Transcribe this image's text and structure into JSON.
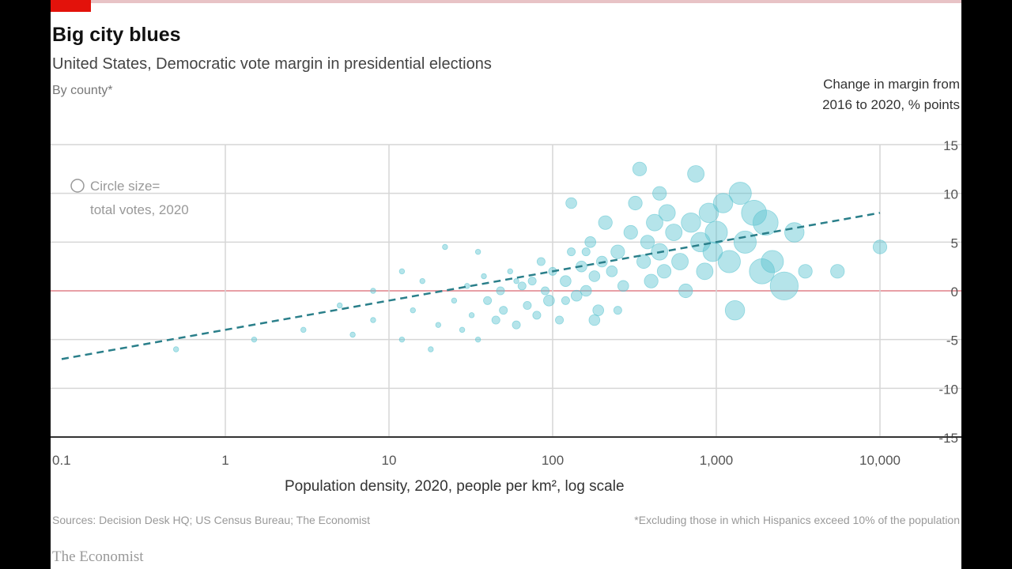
{
  "chart_data": {
    "type": "scatter",
    "title": "Big city blues",
    "subtitle": "United States, Democratic vote margin in presidential elections",
    "note": "By county*",
    "ylabel": "Change in margin from 2016 to 2020, % points",
    "ylabel_lines": [
      "Change in margin from",
      "2016 to 2020, % points"
    ],
    "xlabel": "Population density, 2020, people per km², log scale",
    "x_scale": "log",
    "xlim": [
      0.1,
      10000
    ],
    "ylim": [
      -15,
      15
    ],
    "x_ticks": [
      0.1,
      1,
      10,
      100,
      1000,
      10000
    ],
    "x_tick_labels": [
      "0.1",
      "1",
      "10",
      "100",
      "1,000",
      "10,000"
    ],
    "y_ticks": [
      15,
      10,
      5,
      0,
      -5,
      -10,
      -15
    ],
    "y_tick_labels": [
      "15",
      "10",
      "5",
      "0",
      "-5",
      "-10",
      "-15"
    ],
    "grid": true,
    "zero_line_color": "#e8a0a6",
    "point_color": "#5bc4d1",
    "trend_color": "#2a7f8a",
    "legend": {
      "line1": "Circle size=",
      "line2": "total votes, 2020",
      "placement": "top-left"
    },
    "trend_line": {
      "style": "dashed",
      "points": [
        [
          0.1,
          -7
        ],
        [
          10000,
          8
        ]
      ]
    },
    "points": [
      [
        0.5,
        -6,
        1
      ],
      [
        1.5,
        -5,
        1
      ],
      [
        3,
        -4,
        1
      ],
      [
        5,
        -1.5,
        1
      ],
      [
        6,
        -4.5,
        1
      ],
      [
        8,
        -3,
        1
      ],
      [
        12,
        -5,
        1
      ],
      [
        14,
        -2,
        1
      ],
      [
        16,
        1,
        1
      ],
      [
        18,
        -6,
        1
      ],
      [
        20,
        -3.5,
        1
      ],
      [
        22,
        4.5,
        1
      ],
      [
        25,
        -1,
        1
      ],
      [
        28,
        -4,
        1
      ],
      [
        30,
        0.5,
        1
      ],
      [
        32,
        -2.5,
        1
      ],
      [
        35,
        -5,
        1
      ],
      [
        38,
        1.5,
        1
      ],
      [
        40,
        -1,
        2
      ],
      [
        45,
        -3,
        2
      ],
      [
        48,
        0,
        2
      ],
      [
        50,
        -2,
        2
      ],
      [
        55,
        2,
        1
      ],
      [
        60,
        -3.5,
        2
      ],
      [
        65,
        0.5,
        2
      ],
      [
        70,
        -1.5,
        2
      ],
      [
        75,
        1,
        2
      ],
      [
        80,
        -2.5,
        2
      ],
      [
        85,
        3,
        2
      ],
      [
        90,
        0,
        2
      ],
      [
        95,
        -1,
        3
      ],
      [
        100,
        2,
        2
      ],
      [
        110,
        -3,
        2
      ],
      [
        120,
        1,
        3
      ],
      [
        130,
        4,
        2
      ],
      [
        140,
        -0.5,
        3
      ],
      [
        150,
        2.5,
        3
      ],
      [
        160,
        0,
        3
      ],
      [
        170,
        5,
        3
      ],
      [
        180,
        1.5,
        3
      ],
      [
        190,
        -2,
        3
      ],
      [
        200,
        3,
        3
      ],
      [
        210,
        7,
        4
      ],
      [
        230,
        2,
        3
      ],
      [
        250,
        4,
        4
      ],
      [
        270,
        0.5,
        3
      ],
      [
        300,
        6,
        4
      ],
      [
        320,
        9,
        4
      ],
      [
        340,
        12.5,
        4
      ],
      [
        360,
        3,
        4
      ],
      [
        380,
        5,
        4
      ],
      [
        400,
        1,
        4
      ],
      [
        420,
        7,
        5
      ],
      [
        450,
        4,
        5
      ],
      [
        480,
        2,
        4
      ],
      [
        500,
        8,
        5
      ],
      [
        550,
        6,
        5
      ],
      [
        600,
        3,
        5
      ],
      [
        650,
        0,
        4
      ],
      [
        700,
        7,
        6
      ],
      [
        750,
        12,
        5
      ],
      [
        800,
        5,
        6
      ],
      [
        850,
        2,
        5
      ],
      [
        900,
        8,
        6
      ],
      [
        950,
        4,
        6
      ],
      [
        1000,
        6,
        7
      ],
      [
        1100,
        9,
        6
      ],
      [
        1200,
        3,
        7
      ],
      [
        1300,
        -2,
        6
      ],
      [
        1400,
        10,
        7
      ],
      [
        1500,
        5,
        7
      ],
      [
        1700,
        8,
        8
      ],
      [
        1900,
        2,
        8
      ],
      [
        2000,
        7,
        8
      ],
      [
        2200,
        3,
        7
      ],
      [
        2600,
        0.5,
        9
      ],
      [
        3000,
        6,
        6
      ],
      [
        3500,
        2,
        4
      ],
      [
        5500,
        2,
        4
      ],
      [
        10000,
        4.5,
        4
      ],
      [
        130,
        9,
        3
      ],
      [
        450,
        10,
        4
      ],
      [
        120,
        -1,
        2
      ],
      [
        250,
        -2,
        2
      ],
      [
        160,
        4,
        2
      ],
      [
        60,
        1,
        1
      ],
      [
        35,
        4,
        1
      ],
      [
        8,
        0,
        1
      ],
      [
        12,
        2,
        1
      ],
      [
        180,
        -3,
        3
      ]
    ]
  },
  "footer": {
    "source": "Sources: Decision Desk HQ; US Census Bureau; The Economist",
    "footnote": "*Excluding those in which Hispanics exceed 10% of the population",
    "logo": "The Economist"
  },
  "colors": {
    "brand_red": "#e3120b"
  }
}
